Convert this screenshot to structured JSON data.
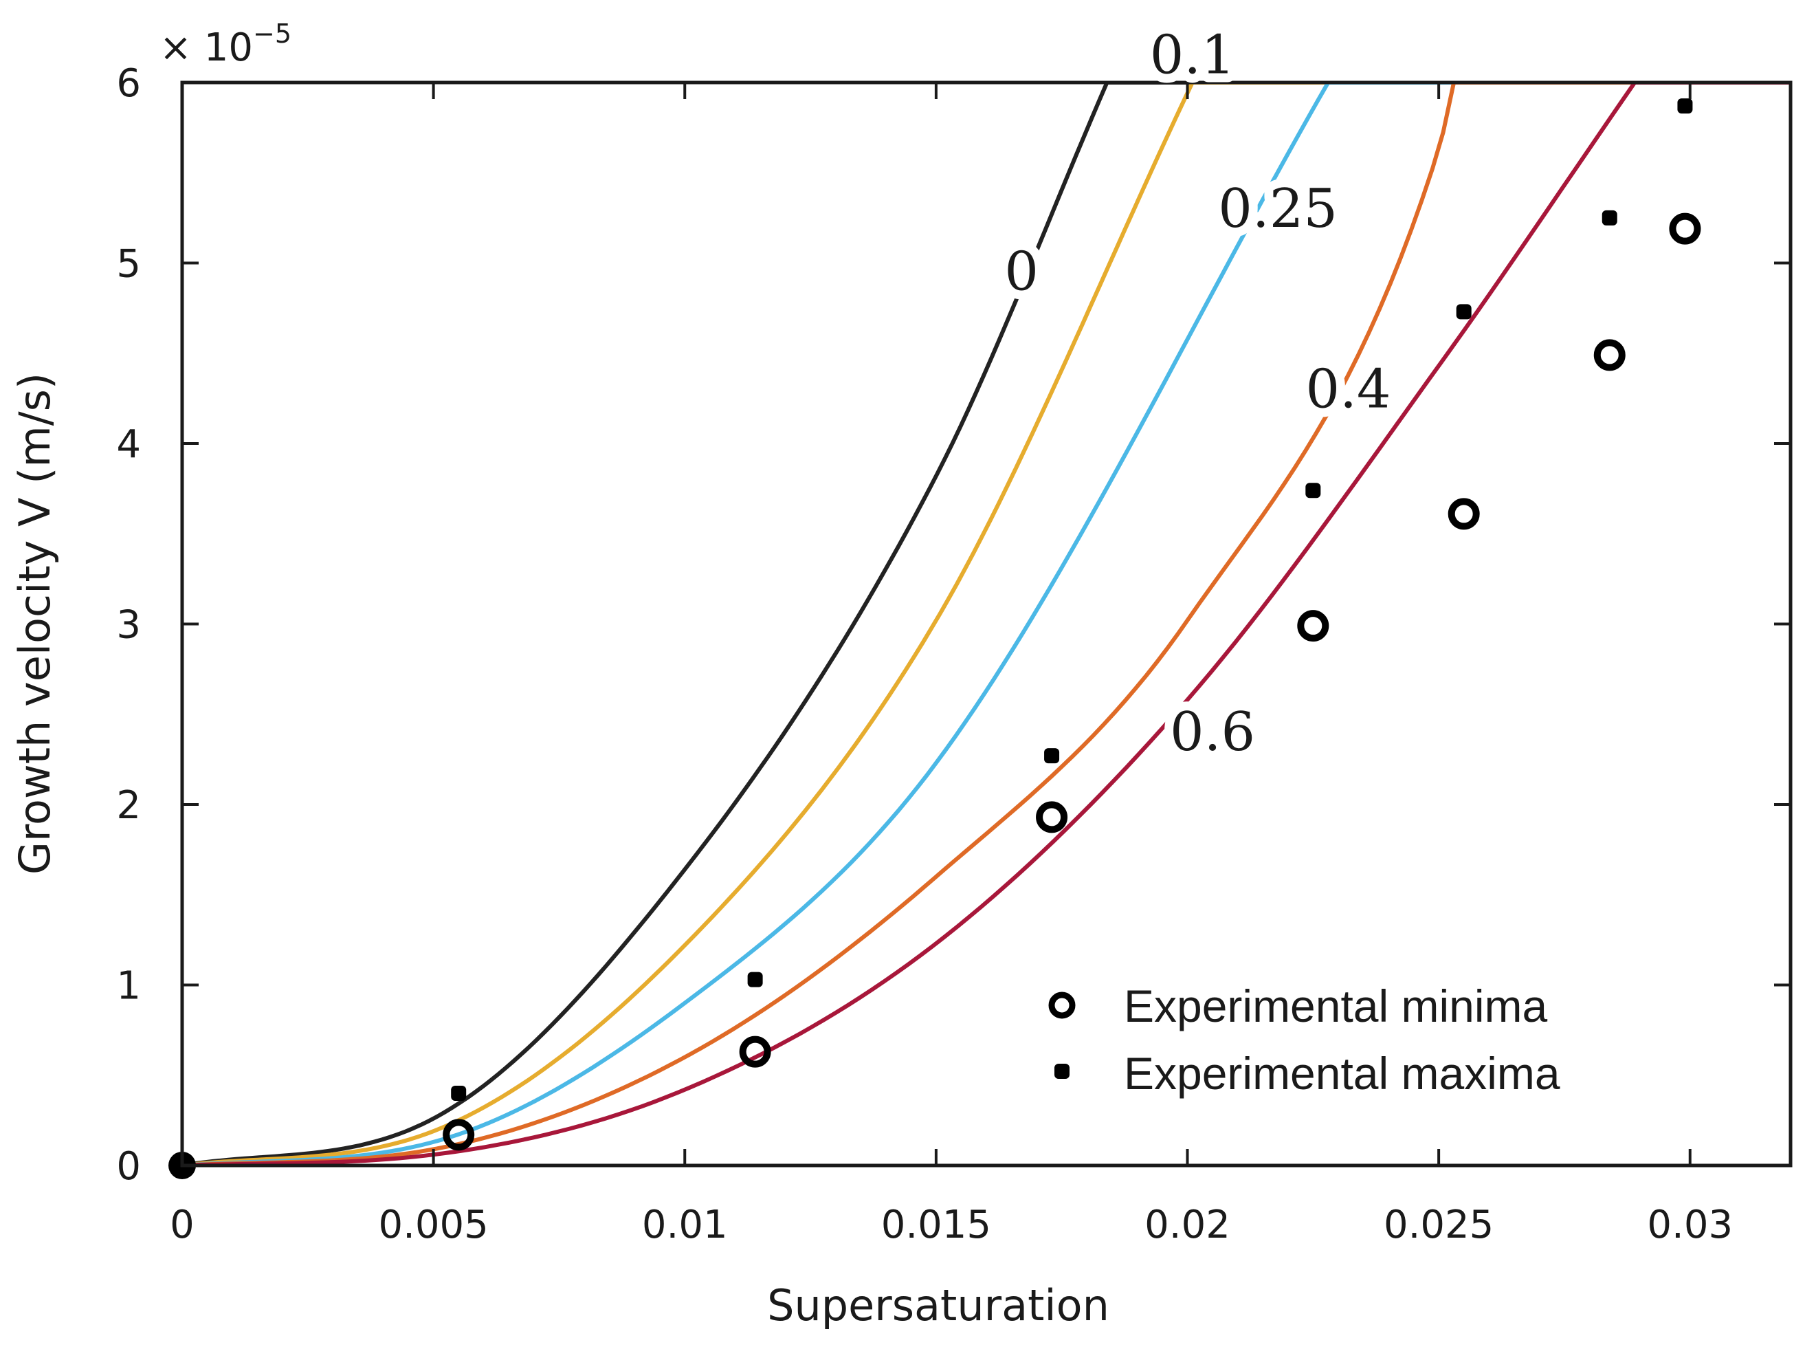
{
  "chart_data": {
    "type": "line",
    "title": "",
    "xlabel": "Supersaturation",
    "ylabel": "Growth velocity V (m/s)",
    "xlim": [
      0,
      0.032
    ],
    "ylim": [
      0,
      6e-05
    ],
    "y_multiplier_base": "× 10",
    "y_multiplier_exponent": "−5",
    "x_ticks": [
      {
        "value": 0,
        "label": "0"
      },
      {
        "value": 0.005,
        "label": "0.005"
      },
      {
        "value": 0.01,
        "label": "0.01"
      },
      {
        "value": 0.015,
        "label": "0.015"
      },
      {
        "value": 0.02,
        "label": "0.02"
      },
      {
        "value": 0.025,
        "label": "0.025"
      },
      {
        "value": 0.03,
        "label": "0.03"
      }
    ],
    "y_ticks": [
      {
        "value": 0,
        "label": "0"
      },
      {
        "value": 1e-05,
        "label": "1"
      },
      {
        "value": 2e-05,
        "label": "2"
      },
      {
        "value": 3e-05,
        "label": "3"
      },
      {
        "value": 4e-05,
        "label": "4"
      },
      {
        "value": 5e-05,
        "label": "5"
      },
      {
        "value": 6e-05,
        "label": "6"
      }
    ],
    "grid": false,
    "series": [
      {
        "label": "0",
        "color": "#222222",
        "x": [
          0,
          0.005,
          0.01,
          0.015,
          0.0184
        ],
        "y": [
          0,
          2.6e-06,
          1.64e-05,
          3.82e-05,
          6e-05
        ]
      },
      {
        "label": "0.1",
        "color": "#e6ac2e",
        "x": [
          0,
          0.005,
          0.01,
          0.015,
          0.0201
        ],
        "y": [
          0,
          1.9e-06,
          1.22e-05,
          3.02e-05,
          6e-05
        ]
      },
      {
        "label": "0.25",
        "color": "#4bb8e6",
        "x": [
          0,
          0.005,
          0.01,
          0.015,
          0.0228
        ],
        "y": [
          0,
          1.3e-06,
          9e-06,
          2.23e-05,
          6e-05
        ]
      },
      {
        "label": "0.4",
        "color": "#df6a26",
        "x": [
          0,
          0.005,
          0.01,
          0.015,
          0.02,
          0.025,
          0.0253
        ],
        "y": [
          0,
          9e-07,
          6e-06,
          1.6e-05,
          3.02e-05,
          5.63e-05,
          6e-05
        ]
      },
      {
        "label": "0.6",
        "color": "#a8173a",
        "x": [
          0,
          0.005,
          0.01,
          0.015,
          0.02,
          0.025,
          0.0289
        ],
        "y": [
          0,
          6e-07,
          4.2e-06,
          1.23e-05,
          2.58e-05,
          4.43e-05,
          6e-05
        ]
      }
    ],
    "curve_labels": [
      {
        "text": "0",
        "x": 0.0167,
        "y": 4.95e-05
      },
      {
        "text": "0.1",
        "x": 0.0201,
        "y": 6.15e-05
      },
      {
        "text": "0.25",
        "x": 0.0218,
        "y": 5.3e-05
      },
      {
        "text": "0.4",
        "x": 0.0232,
        "y": 4.3e-05
      },
      {
        "text": "0.6",
        "x": 0.0205,
        "y": 2.4e-05
      }
    ],
    "points": [
      {
        "name": "Experimental minima",
        "marker": "ring",
        "x": [
          0,
          0.0055,
          0.0114,
          0.0173,
          0.0225,
          0.0255,
          0.0284,
          0.0299
        ],
        "y": [
          0,
          1.7e-06,
          6.3e-06,
          1.93e-05,
          2.99e-05,
          3.61e-05,
          4.49e-05,
          5.19e-05
        ]
      },
      {
        "name": "Experimental maxima",
        "marker": "star",
        "x": [
          0.0055,
          0.0114,
          0.0173,
          0.0225,
          0.0255,
          0.0284,
          0.0299
        ],
        "y": [
          4e-06,
          1.03e-05,
          2.27e-05,
          3.74e-05,
          4.73e-05,
          5.25e-05,
          5.87e-05
        ]
      }
    ],
    "legend": {
      "placement": "bottom-right",
      "entries": [
        {
          "marker": "ring",
          "label": "Experimental minima"
        },
        {
          "marker": "star",
          "label": "Experimental maxima"
        }
      ]
    }
  }
}
